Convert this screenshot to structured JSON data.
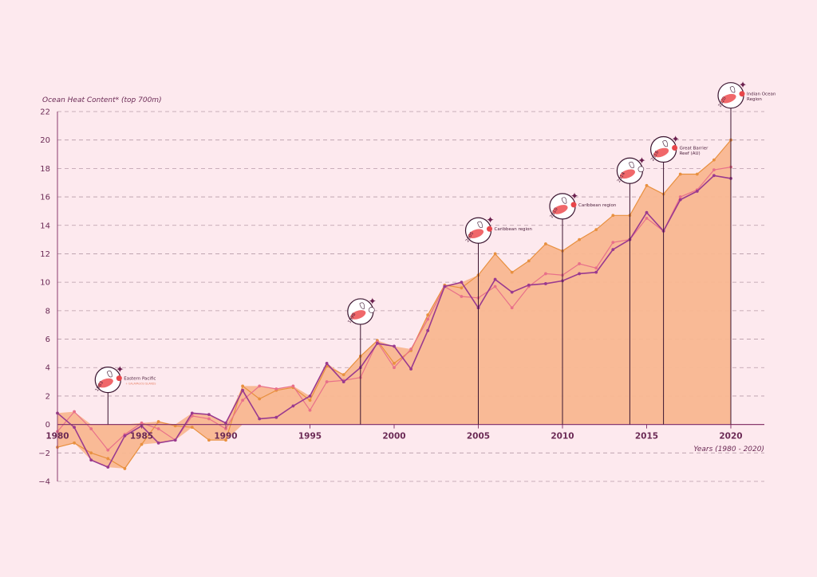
{
  "chart_data": {
    "type": "area",
    "ylabel": "Ocean Heat Content* (top 700m)",
    "xlabel": "Years (1980 - 2020)",
    "xlim": [
      1980,
      2022
    ],
    "ylim": [
      -4,
      22
    ],
    "yticks": [
      "22",
      "20",
      "18",
      "16",
      "14",
      "12",
      "10",
      "8",
      "6",
      "4",
      "2",
      "0",
      "−2",
      "−4"
    ],
    "xticks": [
      "1980",
      "1985",
      "1990",
      "1995",
      "2000",
      "2005",
      "2010",
      "2015",
      "2020"
    ],
    "grid": true,
    "colors": {
      "area_fill": "#f9b790",
      "series_orange": "#e8903f",
      "series_pink": "#e8708a",
      "series_purple": "#9a3a8f",
      "axis": "#8a3a6e",
      "grid": "#b89aa8",
      "event_red": "#e8464a",
      "event_spark": "#6b1f4e"
    },
    "x": [
      1980,
      1981,
      1982,
      1983,
      1984,
      1985,
      1986,
      1987,
      1988,
      1989,
      1990,
      1991,
      1992,
      1993,
      1994,
      1995,
      1996,
      1997,
      1998,
      1999,
      2000,
      2001,
      2002,
      2003,
      2004,
      2005,
      2006,
      2007,
      2008,
      2009,
      2010,
      2011,
      2012,
      2013,
      2014,
      2015,
      2016,
      2017,
      2018,
      2019,
      2020
    ],
    "series": [
      {
        "values": [
          -1.6,
          -1.3,
          -2.0,
          -2.4,
          -3.1,
          -1.4,
          0.2,
          -0.1,
          -0.2,
          -1.1,
          -1.1,
          2.7,
          1.8,
          2.4,
          2.6,
          1.7,
          4.1,
          3.5,
          4.8,
          5.9,
          4.3,
          5.2,
          7.7,
          9.8,
          9.6,
          10.5,
          12.0,
          10.7,
          11.5,
          12.7,
          12.2,
          13.0,
          13.7,
          14.7,
          14.7,
          16.8,
          16.2,
          17.6,
          17.6,
          18.6,
          20.0
        ]
      },
      {
        "values": [
          -0.5,
          0.9,
          -0.3,
          -1.8,
          -0.7,
          0.1,
          -0.3,
          -1.1,
          0.6,
          0.4,
          -0.3,
          1.7,
          2.7,
          2.5,
          2.7,
          1.0,
          3.0,
          3.1,
          3.3,
          5.8,
          4.0,
          5.3,
          7.4,
          9.7,
          9.0,
          8.9,
          9.7,
          8.2,
          9.7,
          10.6,
          10.5,
          11.3,
          11.0,
          12.8,
          13.0,
          14.5,
          13.6,
          16.0,
          16.5,
          17.9,
          18.1
        ]
      },
      {
        "values": [
          0.8,
          -0.2,
          -2.5,
          -3.0,
          -0.8,
          -0.1,
          -1.3,
          -1.1,
          0.8,
          0.7,
          0.1,
          2.4,
          0.4,
          0.5,
          1.3,
          2.0,
          4.3,
          3.0,
          4.0,
          5.7,
          5.5,
          3.9,
          6.6,
          9.7,
          10.0,
          8.2,
          10.2,
          9.3,
          9.8,
          9.9,
          10.1,
          10.6,
          10.7,
          12.3,
          13.0,
          14.9,
          13.6,
          15.8,
          16.4,
          17.5,
          17.3
        ]
      }
    ],
    "events": [
      {
        "year": 1983,
        "label": "Eastern Pacific",
        "sublabel": "+ GALAPAGOS ISLANDS",
        "year_label": "1983"
      },
      {
        "year": 1998,
        "label": "",
        "sublabel": "",
        "year_label": "1998"
      },
      {
        "year": 2005,
        "label": "Caribbean region",
        "sublabel": "",
        "year_label": "2005"
      },
      {
        "year": 2010,
        "label": "Caribbean region",
        "sublabel": "",
        "year_label": "2010"
      },
      {
        "year": 2014,
        "label": "",
        "sublabel": "",
        "year_label": "2014"
      },
      {
        "year": 2016,
        "label": "Great Barrier Reef (AU)",
        "sublabel": "",
        "year_label": "2016"
      },
      {
        "year": 2020,
        "label": "Indian Ocean Region",
        "sublabel": "",
        "year_label": "2020"
      }
    ]
  }
}
